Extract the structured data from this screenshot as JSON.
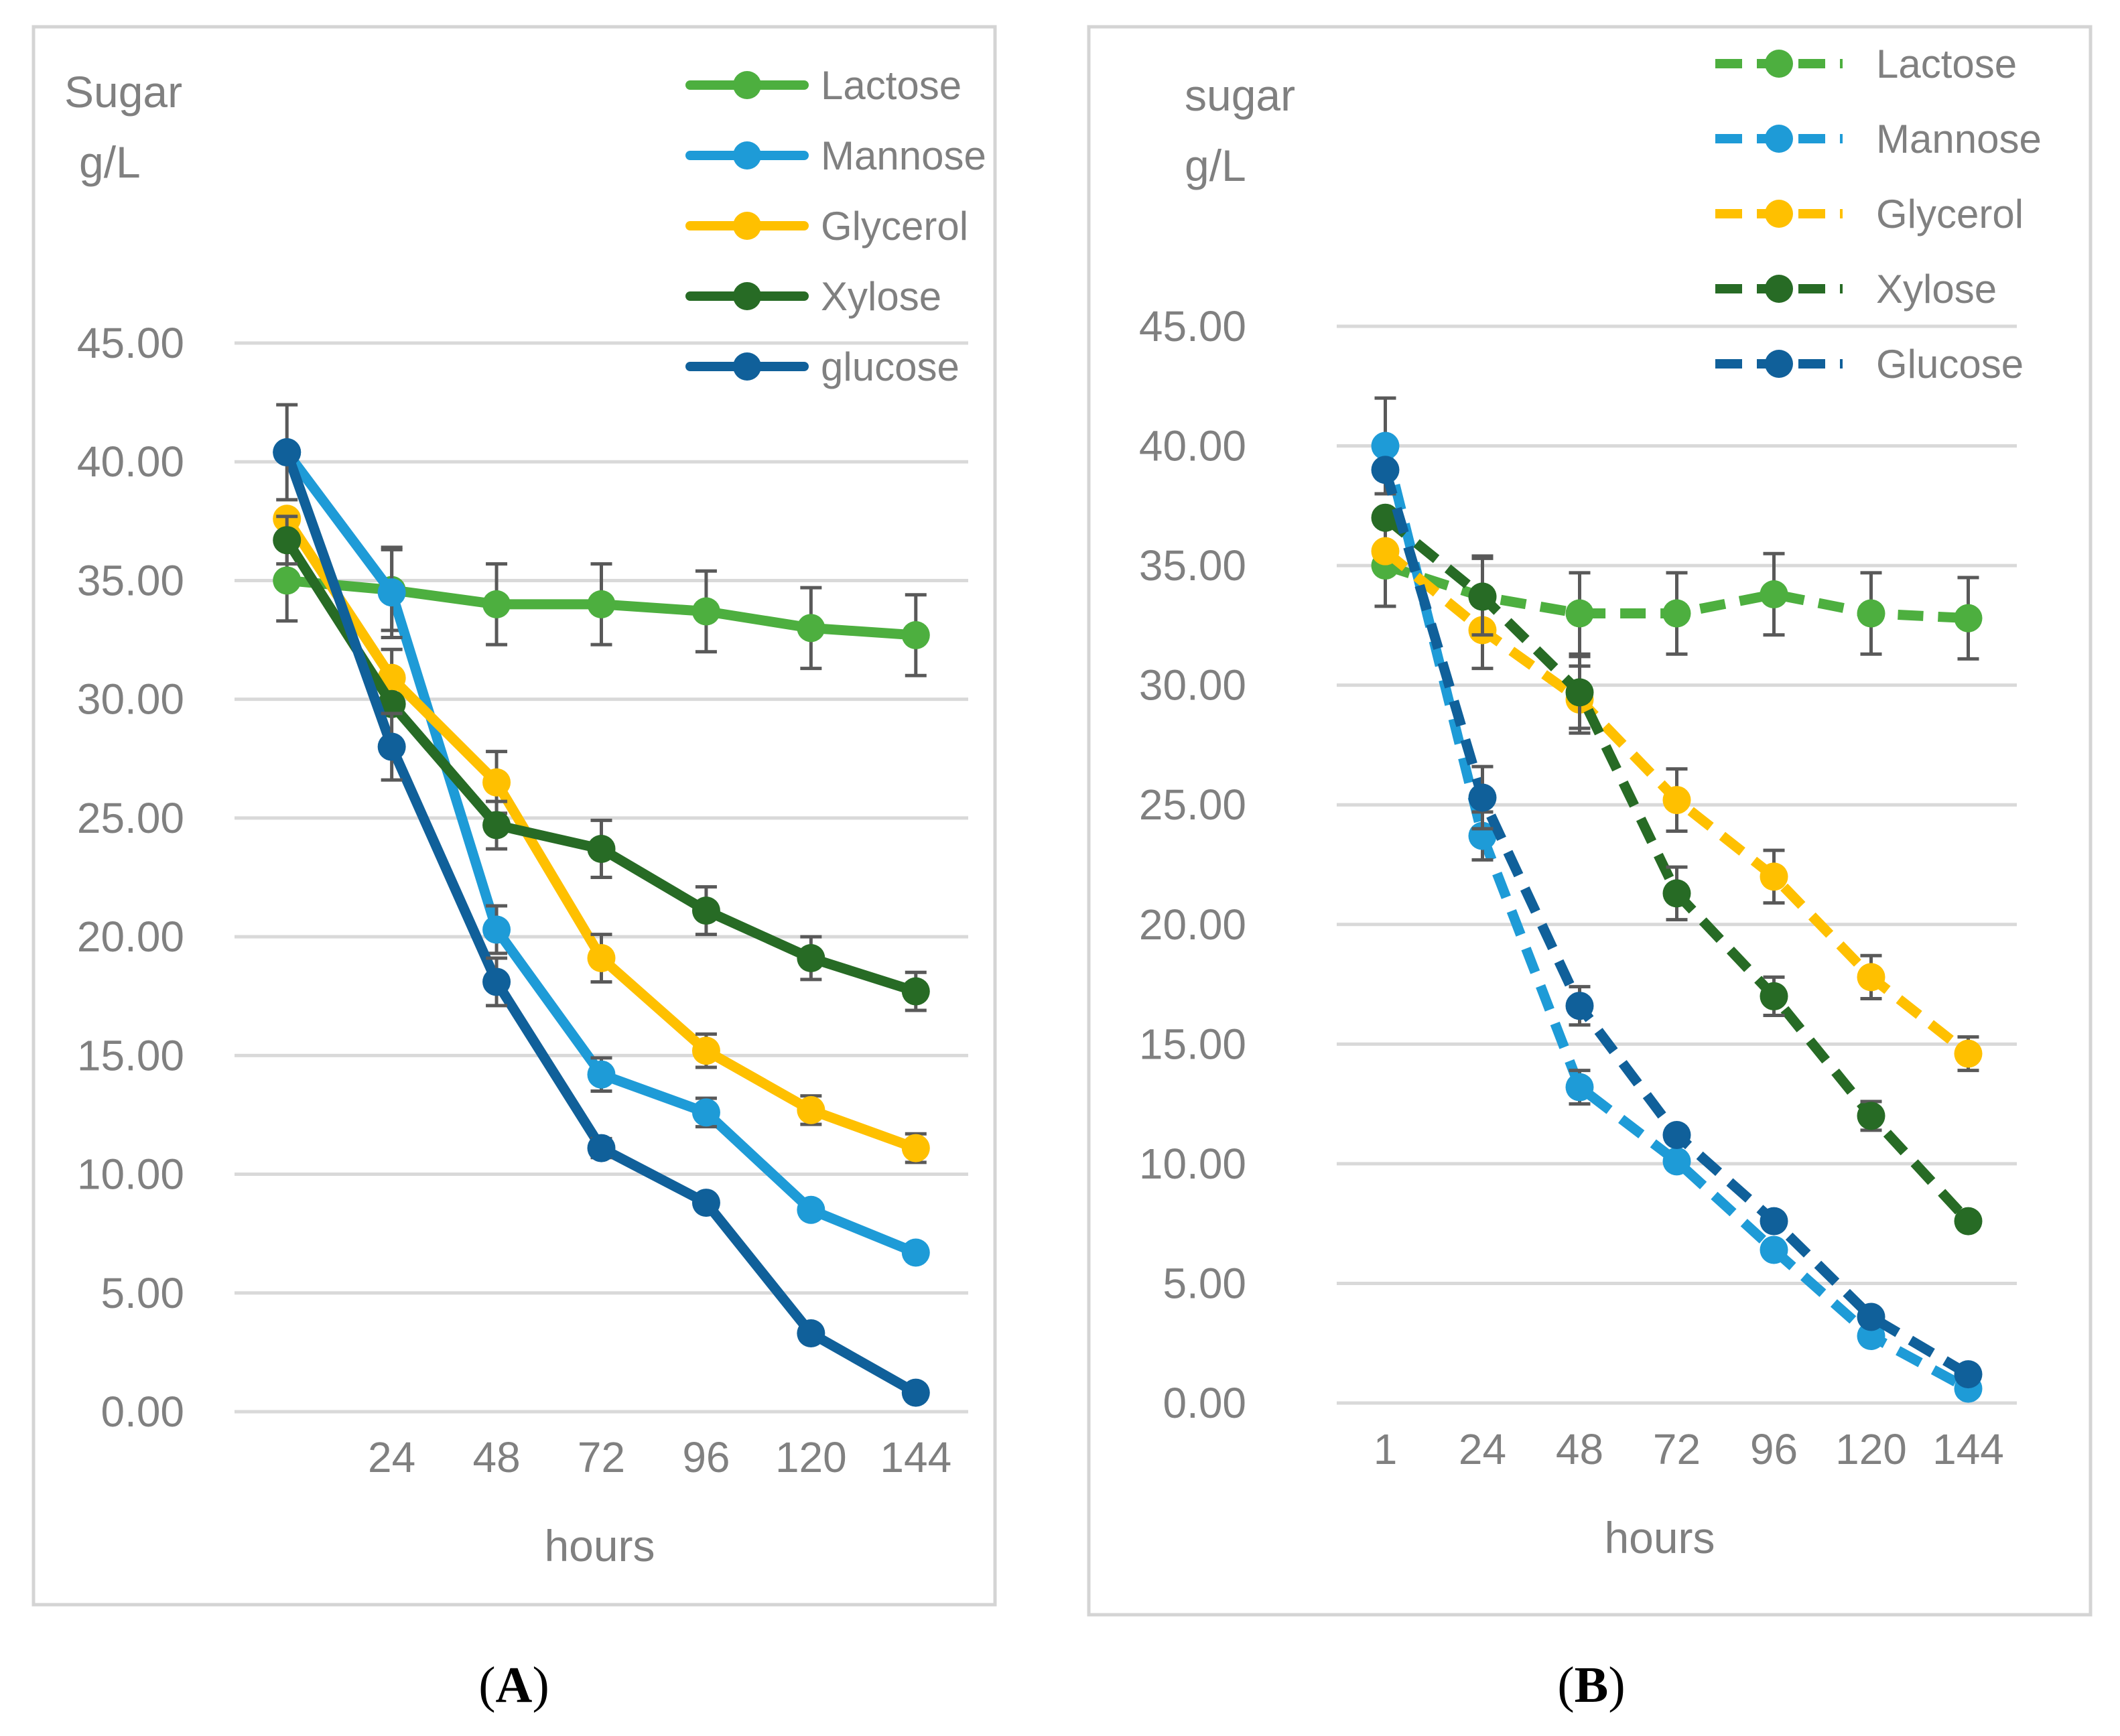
{
  "chart_data": [
    {
      "type": "line",
      "panel_label": "A",
      "ylabel_lines": [
        "Sugar",
        "g/L"
      ],
      "xlabel": "hours",
      "x": [
        "",
        "24",
        "48",
        "72",
        "96",
        "120",
        "144"
      ],
      "ylim": [
        0,
        45
      ],
      "ytick_labels": [
        "0.00",
        "5.00",
        "10.00",
        "15.00",
        "20.00",
        "25.00",
        "30.00",
        "35.00",
        "40.00",
        "45.00"
      ],
      "grid": true,
      "legend_position": "top-right",
      "line_style": "solid",
      "series": [
        {
          "name": "Lactose",
          "color": "#4daf3f",
          "values": [
            35.0,
            34.6,
            34.0,
            34.0,
            33.7,
            33.0,
            32.7
          ],
          "errors": [
            1.7,
            1.7,
            1.7,
            1.7,
            1.7,
            1.7,
            1.7
          ]
        },
        {
          "name": "Mannose",
          "color": "#1e9bd7",
          "values": [
            40.4,
            34.5,
            20.3,
            14.2,
            12.6,
            8.5,
            6.7
          ],
          "errors": [
            0,
            1.9,
            1.0,
            0.7,
            0.6,
            0,
            0
          ]
        },
        {
          "name": "Glycerol",
          "color": "#ffc000",
          "values": [
            37.6,
            30.9,
            26.5,
            19.1,
            15.2,
            12.7,
            11.1
          ],
          "errors": [
            0,
            1.2,
            1.3,
            1.0,
            0.7,
            0.6,
            0.6
          ]
        },
        {
          "name": "Xylose",
          "color": "#276b25",
          "values": [
            36.7,
            29.8,
            24.7,
            23.7,
            21.1,
            19.1,
            17.7
          ],
          "errors": [
            1.0,
            0,
            1.0,
            1.2,
            1.0,
            0.9,
            0.8
          ]
        },
        {
          "name": "glucose",
          "color": "#10609a",
          "values": [
            40.4,
            28.0,
            18.1,
            11.1,
            8.8,
            3.3,
            0.8
          ],
          "errors": [
            2.0,
            1.4,
            1.0,
            0.4,
            0,
            0,
            0
          ]
        }
      ]
    },
    {
      "type": "line",
      "panel_label": "B",
      "ylabel_lines": [
        "sugar",
        "g/L"
      ],
      "xlabel": "hours",
      "x": [
        "1",
        "24",
        "48",
        "72",
        "96",
        "120",
        "144"
      ],
      "ylim": [
        0,
        45
      ],
      "ytick_labels": [
        "0.00",
        "5.00",
        "10.00",
        "15.00",
        "20.00",
        "25.00",
        "30.00",
        "35.00",
        "40.00",
        "45.00"
      ],
      "grid": true,
      "legend_position": "top-right",
      "line_style": "dashed",
      "series": [
        {
          "name": "Lactose",
          "color": "#4daf3f",
          "values": [
            35.0,
            33.7,
            33.0,
            33.0,
            33.8,
            33.0,
            32.8
          ],
          "errors": [
            1.7,
            1.7,
            1.7,
            1.7,
            1.7,
            1.7,
            1.7
          ]
        },
        {
          "name": "Mannose",
          "color": "#1e9bd7",
          "values": [
            40.0,
            23.7,
            13.2,
            10.1,
            6.4,
            2.8,
            0.6
          ],
          "errors": [
            2.0,
            1.0,
            0.7,
            0,
            0,
            0,
            0
          ]
        },
        {
          "name": "Glycerol",
          "color": "#ffc000",
          "values": [
            35.6,
            32.3,
            29.4,
            25.2,
            22.0,
            17.8,
            14.6
          ],
          "errors": [
            0,
            1.6,
            1.4,
            1.3,
            1.1,
            0.9,
            0.7
          ]
        },
        {
          "name": "Xylose",
          "color": "#276b25",
          "values": [
            37.0,
            33.7,
            29.7,
            21.3,
            17.0,
            12.0,
            7.6
          ],
          "errors": [
            0,
            1.6,
            1.5,
            1.1,
            0.8,
            0.6,
            0
          ]
        },
        {
          "name": "Glucose",
          "color": "#10609a",
          "values": [
            39.0,
            25.3,
            16.6,
            11.2,
            7.6,
            3.6,
            1.2
          ],
          "errors": [
            0,
            1.3,
            0.8,
            0,
            0,
            0,
            0
          ]
        }
      ]
    }
  ]
}
